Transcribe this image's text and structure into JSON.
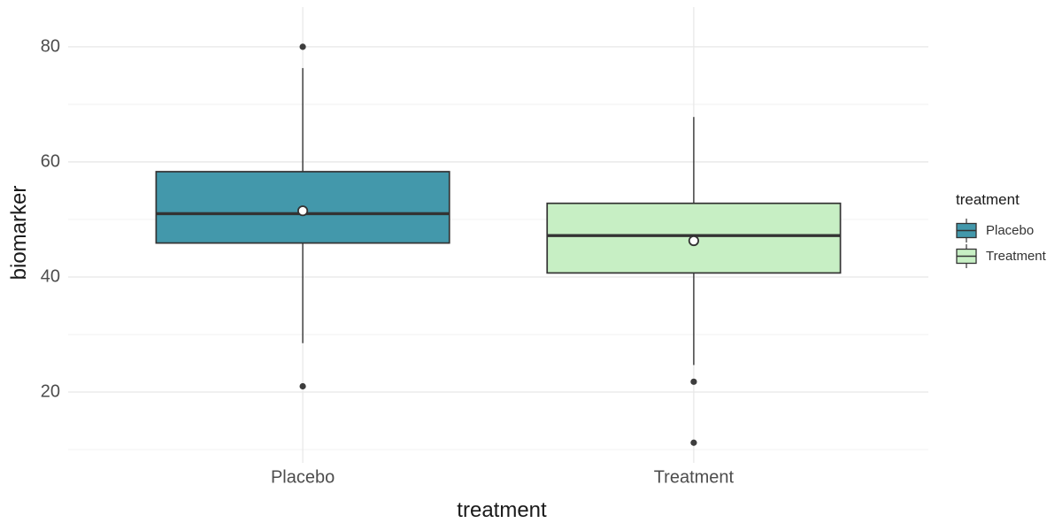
{
  "chart_data": {
    "type": "boxplot",
    "title": "",
    "xlabel": "treatment",
    "ylabel": "biomarker",
    "categories": [
      "Placebo",
      "Treatment"
    ],
    "ylim": [
      7.7,
      86.9
    ],
    "y_major_ticks": [
      20,
      40,
      60,
      80
    ],
    "y_minor_ticks": [
      10,
      30,
      50,
      70
    ],
    "grid": true,
    "legend": {
      "title": "treatment",
      "position": "right",
      "entries": [
        {
          "label": "Placebo",
          "fill": "#4398ab"
        },
        {
          "label": "Treatment",
          "fill": "#c7efc4"
        }
      ]
    },
    "series": [
      {
        "name": "Placebo",
        "fill": "#4398ab",
        "whisker_low": 28.5,
        "q1": 45.9,
        "median": 51.0,
        "q3": 58.3,
        "whisker_high": 76.3,
        "mean": 51.5,
        "outliers": [
          21.0,
          80.0
        ]
      },
      {
        "name": "Treatment",
        "fill": "#c7efc4",
        "whisker_low": 24.7,
        "q1": 40.7,
        "median": 47.2,
        "q3": 52.8,
        "whisker_high": 67.8,
        "mean": 46.3,
        "outliers": [
          11.2,
          21.8
        ]
      }
    ]
  },
  "colors": {
    "background": "#ffffff",
    "box_stroke": "#333333",
    "grid_major": "#e7e7e7",
    "grid_minor": "#f3f3f3",
    "tick_label": "#4d4d4d",
    "axis_title": "#1a1a1a",
    "outlier": "#3d3d3d",
    "mean_fill": "#ffffff",
    "mean_stroke": "#333333"
  }
}
